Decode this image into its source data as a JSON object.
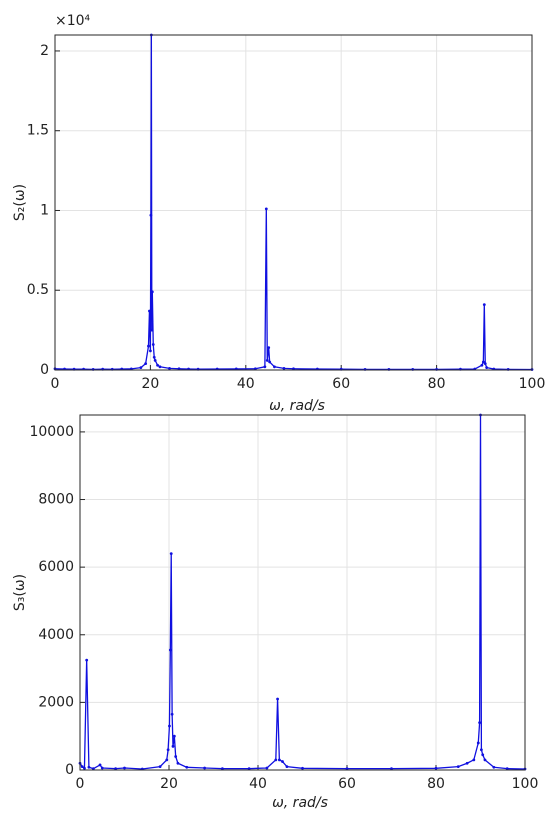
{
  "chart_data": [
    {
      "type": "line",
      "xlabel": "ω, rad/s",
      "ylabel": "S₂(ω)",
      "y_multiplier": "×10⁴",
      "grid": true,
      "xlim": [
        0,
        100
      ],
      "xticks": [
        0,
        20,
        40,
        60,
        80,
        100
      ],
      "ylim": [
        0,
        21000
      ],
      "yticks": [
        0,
        {
          "value": 5000,
          "label": "0.5"
        },
        {
          "value": 10000,
          "label": "1"
        },
        {
          "value": 15000,
          "label": "1.5"
        },
        {
          "value": 20000,
          "label": "2"
        }
      ],
      "x": [
        0,
        2,
        4,
        6,
        8,
        10,
        12,
        14,
        16,
        18,
        19,
        19.6,
        19.8,
        20,
        20.1,
        20.2,
        20.3,
        20.4,
        20.6,
        20.8,
        21,
        21.5,
        22,
        24,
        26,
        28,
        30,
        34,
        38,
        42,
        44,
        44.3,
        44.5,
        44.8,
        45,
        46,
        48,
        50,
        55,
        60,
        65,
        70,
        75,
        80,
        85,
        88,
        89.5,
        89.8,
        90,
        90.2,
        90.5,
        92,
        95,
        100
      ],
      "series": [
        {
          "color": "#1010e0",
          "values": [
            80,
            60,
            50,
            55,
            40,
            50,
            45,
            60,
            70,
            150,
            400,
            1500,
            3700,
            1200,
            9700,
            21000,
            2500,
            4900,
            1600,
            800,
            600,
            300,
            200,
            100,
            80,
            60,
            50,
            60,
            70,
            80,
            200,
            10100,
            600,
            1400,
            500,
            200,
            100,
            80,
            60,
            50,
            40,
            40,
            40,
            40,
            50,
            60,
            300,
            500,
            4100,
            400,
            150,
            60,
            40,
            30
          ]
        }
      ]
    },
    {
      "type": "line",
      "xlabel": "ω, rad/s",
      "ylabel": "S₃(ω)",
      "grid": true,
      "xlim": [
        0,
        100
      ],
      "xticks": [
        0,
        20,
        40,
        60,
        80,
        100
      ],
      "ylim": [
        0,
        10500
      ],
      "yticks": [
        0,
        2000,
        4000,
        6000,
        8000,
        10000
      ],
      "x": [
        0,
        0.5,
        1,
        1.5,
        2,
        3,
        4.5,
        5,
        8,
        10,
        14,
        18,
        19.5,
        19.8,
        20.1,
        20.3,
        20.5,
        20.7,
        20.9,
        21.2,
        21.5,
        22,
        24,
        28,
        32,
        38,
        42,
        44,
        44.4,
        44.8,
        45.5,
        46.5,
        50,
        60,
        70,
        80,
        85,
        87,
        88.5,
        89.5,
        89.8,
        90,
        90.2,
        90.5,
        91,
        93,
        96,
        100
      ],
      "series": [
        {
          "color": "#1010e0",
          "values": [
            200,
            100,
            50,
            3250,
            80,
            40,
            150,
            60,
            40,
            60,
            30,
            100,
            300,
            600,
            1300,
            3550,
            6400,
            1650,
            700,
            1000,
            400,
            200,
            80,
            60,
            40,
            40,
            60,
            300,
            2100,
            300,
            250,
            100,
            50,
            40,
            40,
            50,
            100,
            200,
            300,
            800,
            1400,
            10500,
            600,
            450,
            300,
            80,
            40,
            30
          ]
        }
      ]
    }
  ]
}
